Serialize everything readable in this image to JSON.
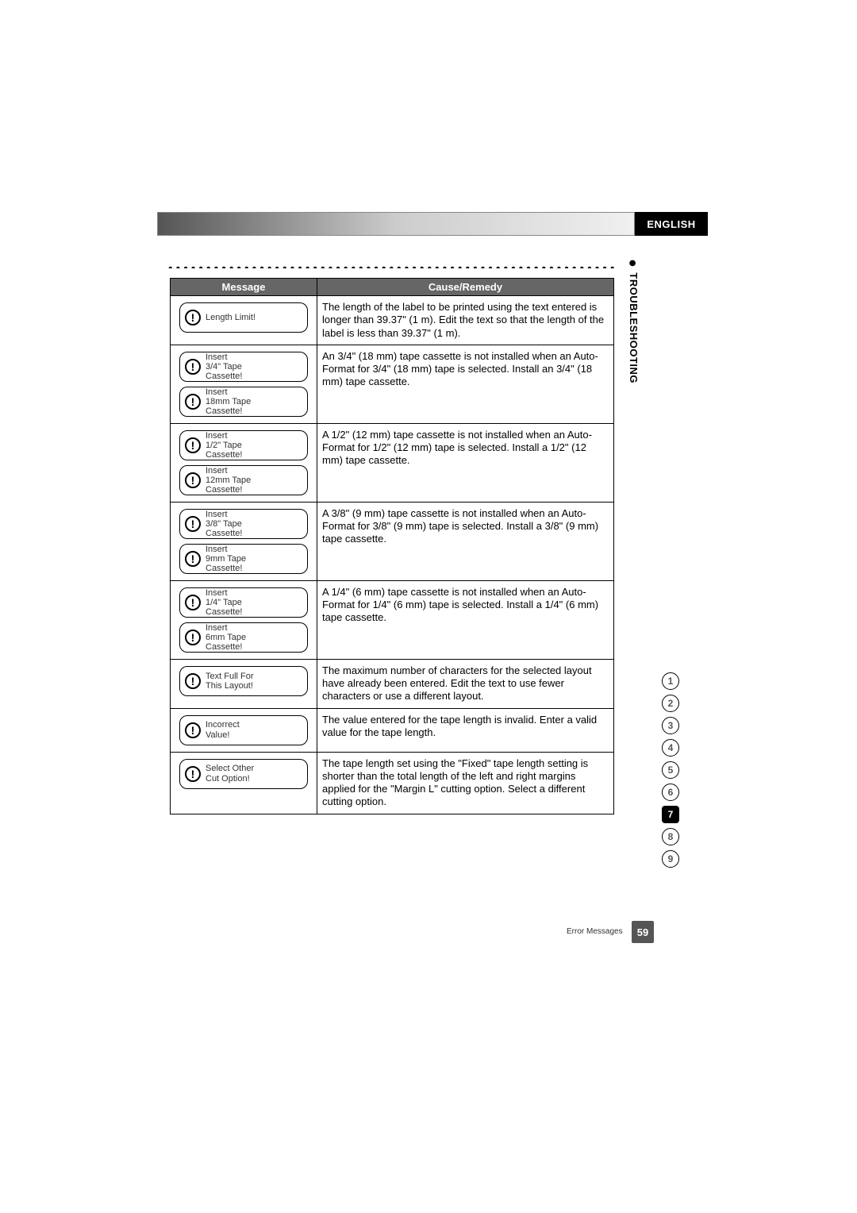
{
  "header": {
    "language_tab": "ENGLISH",
    "section_label": "TROUBLESHOOTING"
  },
  "table": {
    "col_message": "Message",
    "col_remedy": "Cause/Remedy",
    "rows": [
      {
        "messages": [
          {
            "icon": "!",
            "text": "Length Limit!"
          }
        ],
        "remedy": "The length of the label to be printed using the text entered is longer than 39.37\" (1 m). Edit the text so that the length of the label is less than 39.37\" (1 m)."
      },
      {
        "messages": [
          {
            "icon": "!",
            "text": "Insert\n3/4\" Tape\nCassette!"
          },
          {
            "icon": "!",
            "text": "Insert\n18mm Tape\nCassette!"
          }
        ],
        "remedy": "An 3/4\" (18 mm) tape cassette is not installed when an Auto-Format for 3/4\" (18 mm) tape is selected. Install an 3/4\" (18 mm) tape cassette."
      },
      {
        "messages": [
          {
            "icon": "!",
            "text": "Insert\n1/2\" Tape\nCassette!"
          },
          {
            "icon": "!",
            "text": "Insert\n12mm Tape\nCassette!"
          }
        ],
        "remedy": "A 1/2\" (12 mm) tape cassette is not installed when an Auto-Format for 1/2\" (12 mm) tape is selected. Install a 1/2\" (12 mm) tape cassette."
      },
      {
        "messages": [
          {
            "icon": "!",
            "text": "Insert\n3/8\" Tape\nCassette!"
          },
          {
            "icon": "!",
            "text": "Insert\n9mm Tape\nCassette!"
          }
        ],
        "remedy": "A 3/8\" (9 mm) tape cassette is not installed when an Auto-Format for 3/8\" (9 mm) tape is selected. Install a 3/8\" (9 mm) tape cassette."
      },
      {
        "messages": [
          {
            "icon": "!",
            "text": "Insert\n1/4\" Tape\nCassette!"
          },
          {
            "icon": "!",
            "text": "Insert\n6mm Tape\nCassette!"
          }
        ],
        "remedy": "A 1/4\" (6 mm) tape cassette is not installed when an Auto-Format for 1/4\" (6 mm) tape is selected. Install a 1/4\" (6 mm) tape cassette."
      },
      {
        "messages": [
          {
            "icon": "!",
            "text": "Text Full For\nThis Layout!"
          }
        ],
        "remedy": "The maximum number of characters for the selected layout have already been entered. Edit the text to use fewer characters or use a different layout."
      },
      {
        "messages": [
          {
            "icon": "!",
            "text": "Incorrect\nValue!"
          }
        ],
        "remedy": "The value entered for the tape length is invalid. Enter a valid value for the tape length."
      },
      {
        "messages": [
          {
            "icon": "!",
            "text": "Select Other\nCut Option!"
          }
        ],
        "remedy": "The tape length set using the \"Fixed\" tape length setting is shorter than the total length of the left and right margins applied for the \"Margin L\" cutting option. Select a different cutting option."
      }
    ]
  },
  "side_nav": {
    "items": [
      "1",
      "2",
      "3",
      "4",
      "5",
      "6",
      "7",
      "8",
      "9"
    ],
    "active_index": 6
  },
  "footer": {
    "label": "Error Messages",
    "page": "59"
  },
  "colors": {
    "header_row_bg": "#666666",
    "header_row_fg": "#ffffff",
    "black": "#000000",
    "page_bg": "#ffffff",
    "nav_text": "#555555",
    "page_box_bg": "#555555"
  }
}
